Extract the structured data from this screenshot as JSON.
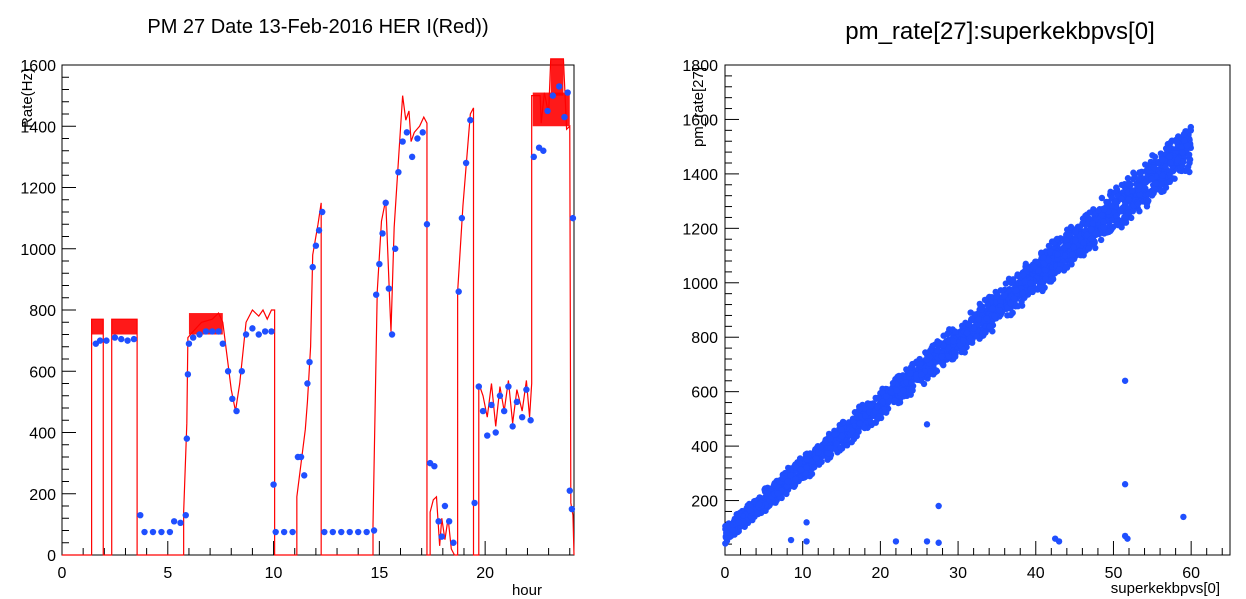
{
  "chart_data": [
    {
      "type": "line",
      "title": "PM 27 Date 13-Feb-2016 HER I(Red))",
      "xlabel": "hour",
      "ylabel": "Rate(Hz)",
      "xlim": [
        0,
        24.2
      ],
      "ylim": [
        0,
        1600
      ],
      "xticks": [
        "0",
        "5",
        "10",
        "15",
        "20"
      ],
      "yticks": [
        "0",
        "200",
        "400",
        "600",
        "800",
        "1000",
        "1200",
        "1400",
        "1600"
      ],
      "colors": {
        "rate_points": "#1f4fff",
        "current_line": "#ff0000"
      },
      "series": [
        {
          "role": "red-line",
          "points": [
            [
              0,
              0
            ],
            [
              1.4,
              0
            ],
            [
              1.4,
              770
            ],
            [
              1.95,
              770
            ],
            [
              1.95,
              0
            ],
            [
              2.35,
              0
            ],
            [
              2.35,
              770
            ],
            [
              3.55,
              770
            ],
            [
              3.55,
              0
            ],
            [
              5.75,
              0
            ],
            [
              5.75,
              140
            ],
            [
              5.9,
              430
            ],
            [
              5.95,
              710
            ],
            [
              6.2,
              730
            ],
            [
              6.6,
              760
            ],
            [
              7.1,
              770
            ],
            [
              7.4,
              790
            ],
            [
              7.6,
              760
            ],
            [
              7.8,
              650
            ],
            [
              8.0,
              540
            ],
            [
              8.2,
              470
            ],
            [
              8.4,
              560
            ],
            [
              8.7,
              760
            ],
            [
              9.0,
              800
            ],
            [
              9.3,
              780
            ],
            [
              9.5,
              800
            ],
            [
              9.7,
              770
            ],
            [
              9.9,
              800
            ],
            [
              10.05,
              800
            ],
            [
              10.05,
              0
            ],
            [
              11.1,
              0
            ],
            [
              11.1,
              190
            ],
            [
              11.5,
              410
            ],
            [
              11.6,
              500
            ],
            [
              11.75,
              680
            ],
            [
              11.85,
              980
            ],
            [
              12.1,
              1080
            ],
            [
              12.25,
              1150
            ],
            [
              12.25,
              0
            ],
            [
              14.7,
              0
            ],
            [
              14.7,
              100
            ],
            [
              14.9,
              860
            ],
            [
              15.1,
              1090
            ],
            [
              15.3,
              1160
            ],
            [
              15.5,
              810
            ],
            [
              15.55,
              730
            ],
            [
              15.7,
              1070
            ],
            [
              15.95,
              1340
            ],
            [
              16.1,
              1500
            ],
            [
              16.25,
              1420
            ],
            [
              16.4,
              1450
            ],
            [
              16.5,
              1350
            ],
            [
              16.65,
              1380
            ],
            [
              16.9,
              1400
            ],
            [
              17.1,
              1430
            ],
            [
              17.25,
              1410
            ],
            [
              17.25,
              0
            ],
            [
              17.4,
              0
            ],
            [
              17.4,
              140
            ],
            [
              17.55,
              180
            ],
            [
              17.7,
              190
            ],
            [
              17.85,
              30
            ],
            [
              17.95,
              120
            ],
            [
              18.1,
              50
            ],
            [
              18.25,
              120
            ],
            [
              18.4,
              20
            ],
            [
              18.55,
              0
            ],
            [
              18.7,
              0
            ],
            [
              18.7,
              860
            ],
            [
              18.95,
              1140
            ],
            [
              19.3,
              1440
            ],
            [
              19.45,
              1460
            ],
            [
              19.45,
              0
            ],
            [
              19.7,
              0
            ],
            [
              19.7,
              560
            ],
            [
              19.9,
              520
            ],
            [
              20.1,
              450
            ],
            [
              20.3,
              560
            ],
            [
              20.5,
              420
            ],
            [
              20.7,
              550
            ],
            [
              20.9,
              470
            ],
            [
              21.1,
              570
            ],
            [
              21.3,
              430
            ],
            [
              21.5,
              540
            ],
            [
              21.75,
              470
            ],
            [
              21.95,
              570
            ],
            [
              22.1,
              450
            ],
            [
              22.2,
              560
            ],
            [
              22.2,
              1500
            ],
            [
              22.6,
              1500
            ],
            [
              22.65,
              1410
            ],
            [
              22.8,
              1510
            ],
            [
              23.0,
              1440
            ],
            [
              23.1,
              1620
            ],
            [
              23.7,
              1620
            ],
            [
              23.85,
              1390
            ],
            [
              24.0,
              1400
            ],
            [
              24.05,
              170
            ],
            [
              24.15,
              130
            ],
            [
              24.2,
              0
            ]
          ]
        },
        {
          "role": "blue-points",
          "points": [
            [
              1.6,
              690
            ],
            [
              1.8,
              700
            ],
            [
              2.1,
              700
            ],
            [
              2.5,
              710
            ],
            [
              2.8,
              705
            ],
            [
              3.1,
              700
            ],
            [
              3.4,
              705
            ],
            [
              3.7,
              130
            ],
            [
              3.9,
              75
            ],
            [
              4.3,
              75
            ],
            [
              4.7,
              75
            ],
            [
              5.1,
              75
            ],
            [
              5.3,
              110
            ],
            [
              5.6,
              105
            ],
            [
              5.85,
              130
            ],
            [
              5.9,
              380
            ],
            [
              5.95,
              590
            ],
            [
              6.0,
              690
            ],
            [
              6.2,
              710
            ],
            [
              6.5,
              720
            ],
            [
              6.8,
              730
            ],
            [
              7.1,
              730
            ],
            [
              7.4,
              730
            ],
            [
              7.6,
              690
            ],
            [
              7.85,
              600
            ],
            [
              8.05,
              510
            ],
            [
              8.25,
              470
            ],
            [
              8.5,
              600
            ],
            [
              8.7,
              720
            ],
            [
              9.0,
              740
            ],
            [
              9.3,
              720
            ],
            [
              9.6,
              730
            ],
            [
              9.9,
              730
            ],
            [
              10.0,
              230
            ],
            [
              10.1,
              75
            ],
            [
              10.5,
              75
            ],
            [
              10.9,
              75
            ],
            [
              11.15,
              320
            ],
            [
              11.3,
              320
            ],
            [
              11.45,
              260
            ],
            [
              11.6,
              560
            ],
            [
              11.7,
              630
            ],
            [
              11.85,
              940
            ],
            [
              12.0,
              1010
            ],
            [
              12.15,
              1060
            ],
            [
              12.3,
              1120
            ],
            [
              12.4,
              75
            ],
            [
              12.8,
              75
            ],
            [
              13.2,
              75
            ],
            [
              13.6,
              75
            ],
            [
              14.0,
              75
            ],
            [
              14.4,
              75
            ],
            [
              14.75,
              80
            ],
            [
              14.85,
              850
            ],
            [
              15.0,
              950
            ],
            [
              15.15,
              1050
            ],
            [
              15.3,
              1150
            ],
            [
              15.45,
              870
            ],
            [
              15.6,
              720
            ],
            [
              15.75,
              1000
            ],
            [
              15.9,
              1250
            ],
            [
              16.1,
              1350
            ],
            [
              16.3,
              1380
            ],
            [
              16.55,
              1300
            ],
            [
              16.8,
              1360
            ],
            [
              17.05,
              1380
            ],
            [
              17.25,
              1080
            ],
            [
              17.4,
              300
            ],
            [
              17.6,
              290
            ],
            [
              17.8,
              110
            ],
            [
              17.95,
              60
            ],
            [
              18.1,
              160
            ],
            [
              18.3,
              110
            ],
            [
              18.5,
              40
            ],
            [
              18.75,
              860
            ],
            [
              18.9,
              1100
            ],
            [
              19.1,
              1280
            ],
            [
              19.3,
              1420
            ],
            [
              19.5,
              170
            ],
            [
              19.7,
              550
            ],
            [
              19.9,
              470
            ],
            [
              20.1,
              390
            ],
            [
              20.3,
              490
            ],
            [
              20.5,
              400
            ],
            [
              20.7,
              520
            ],
            [
              20.9,
              470
            ],
            [
              21.1,
              550
            ],
            [
              21.3,
              420
            ],
            [
              21.5,
              500
            ],
            [
              21.75,
              450
            ],
            [
              21.95,
              540
            ],
            [
              22.15,
              440
            ],
            [
              22.3,
              1300
            ],
            [
              22.55,
              1330
            ],
            [
              22.75,
              1320
            ],
            [
              22.95,
              1450
            ],
            [
              23.2,
              1500
            ],
            [
              23.5,
              1530
            ],
            [
              23.75,
              1430
            ],
            [
              23.9,
              1510
            ],
            [
              24.0,
              210
            ],
            [
              24.1,
              150
            ],
            [
              24.15,
              1100
            ]
          ]
        }
      ]
    },
    {
      "type": "scatter",
      "title": "pm_rate[27]:superkekbpvs[0]",
      "xlabel": "superkekbpvs[0]",
      "ylabel": "pm_rate[27]",
      "xlim": [
        0,
        65
      ],
      "ylim": [
        0,
        1800
      ],
      "xticks": [
        "0",
        "10",
        "20",
        "30",
        "40",
        "50",
        "60"
      ],
      "yticks": [
        "200",
        "400",
        "600",
        "800",
        "1000",
        "1200",
        "1400",
        "1600",
        "1800"
      ],
      "colors": {
        "points": "#1f4fff"
      },
      "trend": {
        "x_start": 0,
        "y_start": 80,
        "x_end": 60,
        "y_end": 1500,
        "band_halfwidth": 70
      },
      "outliers": [
        [
          51.5,
          640
        ],
        [
          51.5,
          260
        ],
        [
          51.5,
          70
        ],
        [
          51.8,
          60
        ],
        [
          59,
          140
        ],
        [
          27.5,
          180
        ],
        [
          26,
          480
        ],
        [
          10.5,
          120
        ],
        [
          8.5,
          55
        ],
        [
          10.5,
          50
        ],
        [
          22,
          50
        ],
        [
          26,
          50
        ],
        [
          27.5,
          45
        ],
        [
          42.5,
          60
        ],
        [
          43,
          50
        ]
      ]
    }
  ]
}
